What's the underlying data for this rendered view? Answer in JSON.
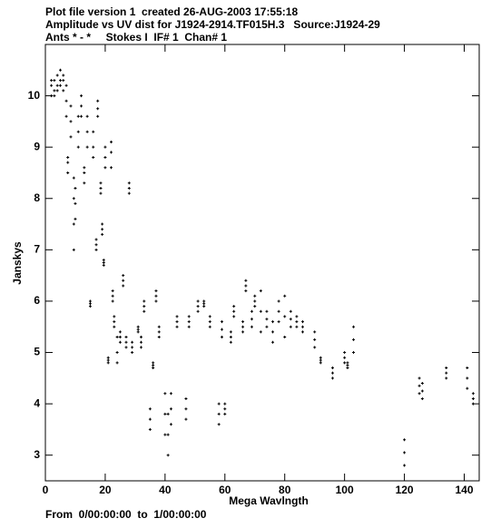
{
  "chart_data": {
    "type": "scatter",
    "title": "Plot file version 1  created 26-AUG-2003 17:55:18",
    "subtitle": [
      "Amplitude vs UV dist for J1924-2914.TF015H.3   Source:J1924-29",
      "Ants * - *     Stokes I  IF# 1  Chan# 1"
    ],
    "x_label": "Mega Wavlngth",
    "y_label": "Janskys",
    "annotations": [
      "From  0/00:00:00  to  1/00:00:00"
    ],
    "color": "#000000",
    "xlim": [
      0,
      145
    ],
    "ylim": [
      2.5,
      11
    ],
    "xticks": [
      0,
      20,
      40,
      60,
      80,
      100,
      120,
      140
    ],
    "yticks": [
      3,
      4,
      5,
      6,
      7,
      8,
      9,
      10
    ],
    "x": [
      2,
      2,
      2,
      3,
      3,
      3,
      4,
      4,
      4,
      5,
      5,
      5,
      6,
      6,
      6,
      7,
      7,
      7,
      7.5,
      7.5,
      7.5,
      8.5,
      8.5,
      8.5,
      9.5,
      9.5,
      9.5,
      9.5,
      10,
      10,
      10,
      11,
      11,
      11,
      12,
      12,
      12,
      13,
      13,
      13,
      14,
      14,
      14,
      15,
      15,
      15,
      16,
      16,
      16,
      17,
      17,
      17,
      17.5,
      17.5,
      17.5,
      18.5,
      18.5,
      18.5,
      19,
      19,
      19,
      19.5,
      19.5,
      19.5,
      20,
      20,
      20,
      21,
      21,
      21,
      22,
      22,
      22,
      22.5,
      22.5,
      22.5,
      23,
      23,
      23,
      24,
      24,
      24,
      25,
      25,
      25,
      26,
      26,
      26,
      27,
      27,
      27,
      28,
      28,
      28,
      29,
      29,
      29,
      31,
      31,
      31,
      32,
      32,
      32,
      33,
      33,
      33,
      35,
      35,
      35,
      36,
      36,
      36,
      37,
      37,
      37,
      38,
      38,
      38,
      40,
      40,
      40,
      41,
      41,
      41,
      42,
      42,
      42,
      44,
      44,
      44,
      47,
      47,
      47,
      48,
      48,
      48,
      51,
      51,
      51,
      53,
      53,
      53,
      55,
      55,
      55,
      58,
      58,
      58,
      59,
      59,
      59,
      60,
      60,
      60,
      62,
      62,
      62,
      63,
      63,
      63,
      66,
      66,
      66,
      67,
      67,
      67,
      69,
      69,
      69,
      70,
      70,
      70,
      72,
      72,
      72,
      74,
      74,
      74,
      76,
      76,
      76,
      78,
      78,
      78,
      80,
      80,
      80,
      82,
      82,
      82,
      84,
      84,
      84,
      86,
      86,
      86,
      90,
      90,
      90,
      92,
      92,
      92,
      96,
      96,
      96,
      100,
      100,
      100,
      101,
      101,
      101,
      103,
      103,
      103,
      120,
      120,
      120,
      125,
      125,
      125,
      126,
      126,
      126,
      134,
      134,
      134,
      141,
      141,
      141,
      143,
      143,
      143
    ],
    "values": [
      10.0,
      10.2,
      10.3,
      10.1,
      10.3,
      10.0,
      10.2,
      10.4,
      10.1,
      10.3,
      10.5,
      10.2,
      10.4,
      10.1,
      10.3,
      9.6,
      9.9,
      10.2,
      8.5,
      8.7,
      8.8,
      9.2,
      9.5,
      9.8,
      7.0,
      7.5,
      8.0,
      8.4,
      7.6,
      7.9,
      8.2,
      9.0,
      9.3,
      9.6,
      9.6,
      9.8,
      10.0,
      8.3,
      8.5,
      8.6,
      9.0,
      9.3,
      9.6,
      5.9,
      5.95,
      6.0,
      8.8,
      9.0,
      9.3,
      7.0,
      7.1,
      7.2,
      9.6,
      9.75,
      9.9,
      8.1,
      8.2,
      8.3,
      7.3,
      7.4,
      7.5,
      6.7,
      6.75,
      6.8,
      8.6,
      8.8,
      9.0,
      4.8,
      4.85,
      4.9,
      8.6,
      8.9,
      9.1,
      6.0,
      6.1,
      6.2,
      5.5,
      5.6,
      5.7,
      4.8,
      5.0,
      5.3,
      5.2,
      5.3,
      5.4,
      6.3,
      6.4,
      6.5,
      5.1,
      5.2,
      5.3,
      8.1,
      8.2,
      8.3,
      5.0,
      5.1,
      5.2,
      5.4,
      5.45,
      5.5,
      5.1,
      5.2,
      5.3,
      5.8,
      5.9,
      6.0,
      3.5,
      3.7,
      3.9,
      4.7,
      4.75,
      4.8,
      6.0,
      6.1,
      6.2,
      5.3,
      5.4,
      5.5,
      3.4,
      3.8,
      4.2,
      3.0,
      3.4,
      3.8,
      3.6,
      3.9,
      4.2,
      5.5,
      5.6,
      5.7,
      3.7,
      3.9,
      4.1,
      5.5,
      5.6,
      5.7,
      5.8,
      5.9,
      6.0,
      5.9,
      5.95,
      6.0,
      5.5,
      5.6,
      5.7,
      3.6,
      3.8,
      4.0,
      5.3,
      5.45,
      5.6,
      3.8,
      3.9,
      4.0,
      5.2,
      5.3,
      5.4,
      5.7,
      5.8,
      5.9,
      5.4,
      5.5,
      5.6,
      6.2,
      6.3,
      6.4,
      5.5,
      5.65,
      5.8,
      5.9,
      6.0,
      6.1,
      5.4,
      5.8,
      6.2,
      5.5,
      5.65,
      5.8,
      5.2,
      5.4,
      5.6,
      5.6,
      5.8,
      6.0,
      5.3,
      5.7,
      6.1,
      5.5,
      5.65,
      5.8,
      5.5,
      5.6,
      5.7,
      5.4,
      5.5,
      5.6,
      5.1,
      5.25,
      5.4,
      4.8,
      4.85,
      4.9,
      4.5,
      4.6,
      4.7,
      4.8,
      4.9,
      5.0,
      4.7,
      4.75,
      4.8,
      5.0,
      5.25,
      5.5,
      2.8,
      3.05,
      3.3,
      4.2,
      4.35,
      4.5,
      4.1,
      4.25,
      4.4,
      4.5,
      4.6,
      4.7,
      4.3,
      4.5,
      4.7,
      4.0,
      4.1,
      4.2
    ]
  }
}
